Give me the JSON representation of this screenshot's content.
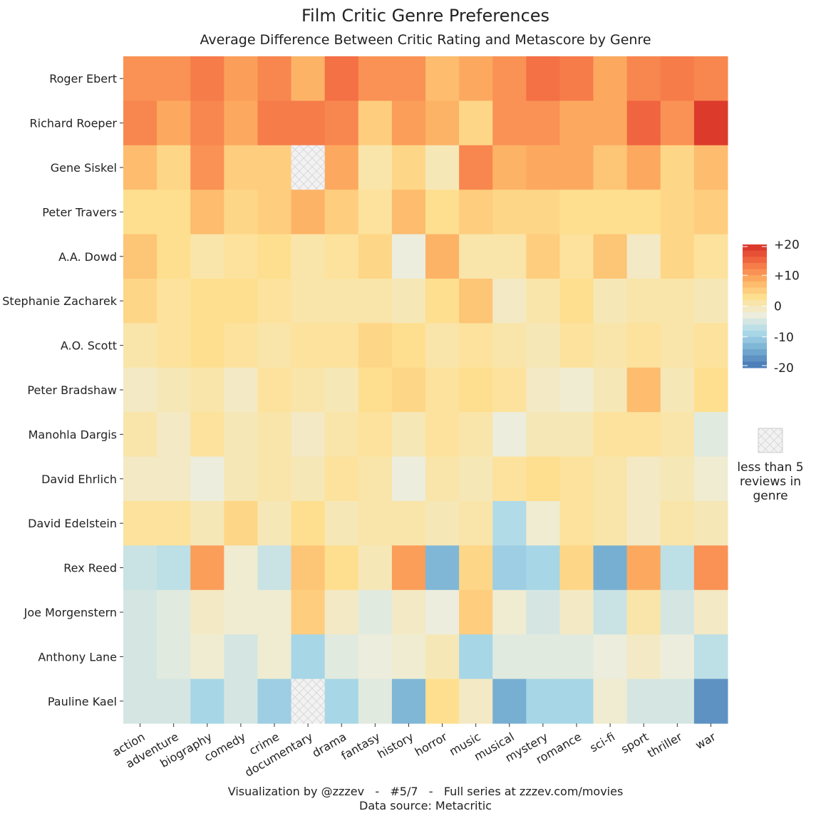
{
  "chart_data": {
    "type": "heatmap",
    "title": "Film Critic Genre Preferences",
    "subtitle": "Average Difference Between Critic Rating and Metascore by Genre",
    "caption_line1": "Visualization by @zzzev   -   #5/7   -   Full series at zzzev.com/movies",
    "caption_line2": "Data source: Metacritic",
    "x_categories": [
      "action",
      "adventure",
      "biography",
      "comedy",
      "crime",
      "documentary",
      "drama",
      "fantasy",
      "history",
      "horror",
      "music",
      "musical",
      "mystery",
      "romance",
      "sci-fi",
      "sport",
      "thriller",
      "war"
    ],
    "y_categories": [
      "Roger Ebert",
      "Richard Roeper",
      "Gene Siskel",
      "Peter Travers",
      "A.A. Dowd",
      "Stephanie Zacharek",
      "A.O. Scott",
      "Peter Bradshaw",
      "Manohla Dargis",
      "David Ehrlich",
      "David Edelstein",
      "Rex Reed",
      "Joe Morgenstern",
      "Anthony Lane",
      "Pauline Kael"
    ],
    "values": [
      [
        11,
        11,
        13,
        10,
        12,
        8,
        14,
        11,
        11,
        7,
        9,
        11,
        14,
        13,
        9,
        12,
        13,
        12
      ],
      [
        12,
        9,
        12,
        9,
        13,
        13,
        12,
        5,
        10,
        8,
        4,
        11,
        11,
        9,
        9,
        15,
        11,
        19
      ],
      [
        7,
        4,
        11,
        5,
        5,
        null,
        9,
        1,
        4,
        0,
        12,
        8,
        9,
        9,
        6,
        9,
        4,
        7
      ],
      [
        3,
        3,
        7,
        4,
        5,
        8,
        5,
        2,
        7,
        3,
        5,
        4,
        4,
        3,
        3,
        3,
        4,
        5
      ],
      [
        6,
        3,
        1,
        2,
        3,
        1,
        2,
        4,
        -3,
        8,
        1,
        1,
        5,
        2,
        6,
        -1,
        4,
        2
      ],
      [
        4,
        2,
        3,
        3,
        2,
        1,
        1,
        1,
        0,
        3,
        6,
        -1,
        1,
        3,
        0,
        1,
        1,
        0
      ],
      [
        1,
        2,
        3,
        2,
        1,
        2,
        2,
        4,
        3,
        1,
        2,
        1,
        0,
        2,
        1,
        2,
        1,
        2
      ],
      [
        -1,
        0,
        1,
        -1,
        2,
        1,
        0,
        3,
        4,
        2,
        3,
        2,
        -1,
        -2,
        0,
        7,
        0,
        3
      ],
      [
        1,
        -1,
        2,
        0,
        1,
        -1,
        1,
        2,
        0,
        2,
        1,
        -3,
        0,
        0,
        2,
        2,
        1,
        -4
      ],
      [
        -1,
        -1,
        -3,
        0,
        1,
        0,
        2,
        1,
        -3,
        1,
        0,
        2,
        3,
        2,
        1,
        -1,
        0,
        -2
      ],
      [
        2,
        2,
        0,
        4,
        0,
        3,
        0,
        1,
        1,
        0,
        1,
        -8,
        -2,
        2,
        1,
        -1,
        1,
        0
      ],
      [
        -6,
        -7,
        10,
        -2,
        -6,
        6,
        3,
        0,
        10,
        -13,
        4,
        -10,
        -9,
        4,
        -14,
        9,
        -7,
        11
      ],
      [
        -5,
        -4,
        -1,
        -2,
        -2,
        5,
        -1,
        -4,
        -1,
        -3,
        5,
        -2,
        -5,
        -1,
        -6,
        1,
        -5,
        -1
      ],
      [
        -5,
        -4,
        -2,
        -5,
        -2,
        -9,
        -4,
        -3,
        -2,
        0,
        -9,
        -4,
        -4,
        -4,
        -3,
        -1,
        -3,
        -7
      ],
      [
        -5,
        -5,
        -9,
        -5,
        -10,
        null,
        -9,
        -4,
        -13,
        3,
        -1,
        -14,
        -9,
        -9,
        -2,
        -5,
        -5,
        -17
      ]
    ],
    "color_range": [
      -20,
      20
    ],
    "colors": [
      "#4575b4",
      "#74add1",
      "#abd9e9",
      "#eeeedd",
      "#fee090",
      "#fdae61",
      "#f46d43",
      "#d73027"
    ],
    "legend": {
      "ticks": [
        "+20",
        "+10",
        "0",
        "-10",
        "-20"
      ],
      "tick_values": [
        20,
        10,
        0,
        -10,
        -20
      ],
      "position": "right",
      "missing_label_lines": [
        "less than 5",
        "reviews in",
        "genre"
      ]
    }
  }
}
